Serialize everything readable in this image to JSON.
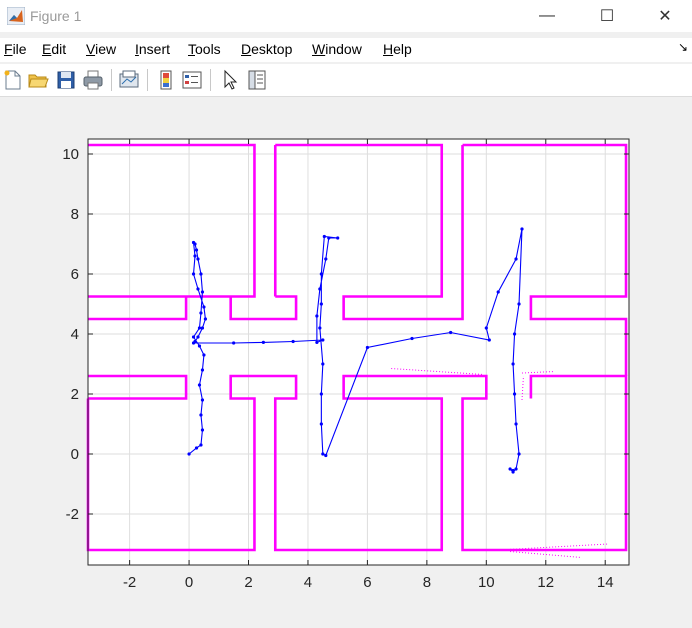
{
  "window": {
    "title": "Figure 1",
    "minimize": "—",
    "maximize": "☐",
    "close": "✕"
  },
  "menu": [
    {
      "key": "F",
      "rest": "ile"
    },
    {
      "key": "E",
      "rest": "dit"
    },
    {
      "key": "V",
      "rest": "iew"
    },
    {
      "key": "I",
      "rest": "nsert"
    },
    {
      "key": "T",
      "rest": "ools"
    },
    {
      "key": "D",
      "rest": "esktop"
    },
    {
      "key": "W",
      "rest": "indow"
    },
    {
      "key": "H",
      "rest": "elp"
    }
  ],
  "toolbar_icons": [
    "new-figure-icon",
    "open-file-icon",
    "save-icon",
    "print-icon",
    "link-plot-icon",
    "insert-colorbar-icon",
    "insert-legend-icon",
    "edit-plot-icon",
    "property-inspector-icon"
  ],
  "colors": {
    "map": "#ff00ff",
    "path": "#0000ff",
    "grid": "#dedede"
  },
  "chart_data": {
    "type": "line",
    "title": "",
    "xlabel": "",
    "ylabel": "",
    "xlim": [
      -3.4,
      14.8
    ],
    "ylim": [
      -3.7,
      10.5
    ],
    "xticks": [
      -2,
      0,
      2,
      4,
      6,
      8,
      10,
      12,
      14
    ],
    "yticks": [
      -2,
      0,
      2,
      4,
      6,
      8,
      10
    ],
    "grid": true,
    "series": [
      {
        "role": "occupancy-map-walls",
        "color": "#ff00ff",
        "polylines": [
          [
            [
              -3.4,
              10.3
            ],
            [
              2.2,
              10.3
            ],
            [
              2.2,
              5.25
            ],
            [
              -3.4,
              5.25
            ]
          ],
          [
            [
              -3.4,
              4.5
            ],
            [
              -0.1,
              4.5
            ],
            [
              -0.1,
              5.25
            ]
          ],
          [
            [
              -3.4,
              2.6
            ],
            [
              -0.1,
              2.6
            ],
            [
              -0.1,
              1.85
            ],
            [
              -3.4,
              1.85
            ]
          ],
          [
            [
              -3.4,
              1.85
            ],
            [
              -3.4,
              -3.2
            ],
            [
              2.2,
              -3.2
            ],
            [
              2.2,
              1.85
            ],
            [
              1.4,
              1.85
            ],
            [
              1.4,
              2.6
            ],
            [
              3.6,
              2.6
            ],
            [
              3.6,
              1.85
            ],
            [
              2.9,
              1.85
            ],
            [
              2.9,
              -3.2
            ],
            [
              8.5,
              -3.2
            ],
            [
              8.5,
              1.85
            ],
            [
              5.2,
              1.85
            ],
            [
              5.2,
              2.6
            ],
            [
              10.0,
              2.6
            ],
            [
              10.0,
              1.85
            ],
            [
              9.2,
              1.85
            ],
            [
              9.2,
              -3.2
            ],
            [
              14.7,
              -3.2
            ],
            [
              14.7,
              2.6
            ],
            [
              11.5,
              2.6
            ],
            [
              11.5,
              1.85
            ]
          ],
          [
            [
              2.9,
              10.3
            ],
            [
              8.5,
              10.3
            ],
            [
              8.5,
              5.25
            ],
            [
              5.2,
              5.25
            ],
            [
              5.2,
              4.5
            ],
            [
              9.2,
              4.5
            ],
            [
              9.2,
              10.3
            ]
          ],
          [
            [
              1.4,
              5.25
            ],
            [
              1.4,
              4.5
            ],
            [
              3.6,
              4.5
            ],
            [
              3.6,
              5.25
            ],
            [
              2.9,
              5.25
            ]
          ],
          [
            [
              9.2,
              10.3
            ],
            [
              14.7,
              10.3
            ],
            [
              14.7,
              5.25
            ],
            [
              11.5,
              5.25
            ],
            [
              11.5,
              4.5
            ],
            [
              14.7,
              4.5
            ],
            [
              14.7,
              2.6
            ]
          ],
          [
            [
              2.9,
              5.25
            ],
            [
              2.9,
              10.3
            ]
          ]
        ],
        "scatter_streaks": [
          [
            [
              6.8,
              2.85
            ],
            [
              9.9,
              2.65
            ]
          ],
          [
            [
              10.4,
              -3.2
            ],
            [
              14.1,
              -3.0
            ]
          ],
          [
            [
              10.8,
              -3.25
            ],
            [
              13.2,
              -3.45
            ]
          ],
          [
            [
              11.2,
              2.7
            ],
            [
              12.3,
              2.75
            ]
          ],
          [
            [
              11.2,
              1.8
            ],
            [
              11.25,
              2.6
            ]
          ]
        ]
      },
      {
        "role": "trajectory",
        "color": "#0000ff",
        "x": [
          0.0,
          0.25,
          0.4,
          0.45,
          0.4,
          0.45,
          0.35,
          0.45,
          0.5,
          0.35,
          0.15,
          0.35,
          0.4,
          0.45,
          0.4,
          0.3,
          0.25,
          0.2,
          0.15,
          0.2,
          0.15,
          0.3,
          0.5,
          0.55,
          0.45,
          0.3,
          0.2,
          0.15,
          1.5,
          2.5,
          3.5,
          4.5,
          4.3,
          4.3,
          4.4,
          4.6,
          4.7,
          5.0,
          4.55,
          4.45,
          4.45,
          4.4,
          4.5,
          4.45,
          4.45,
          4.5,
          4.6,
          6.0,
          7.5,
          8.8,
          10.1,
          10.0,
          10.4,
          11.0,
          11.2,
          11.1,
          10.95,
          10.9,
          10.95,
          11.0,
          11.1,
          11.0,
          10.9,
          10.8,
          10.9
        ],
        "y": [
          0.0,
          0.2,
          0.3,
          0.8,
          1.3,
          1.8,
          2.3,
          2.8,
          3.3,
          3.6,
          3.9,
          4.2,
          4.7,
          5.4,
          6.0,
          6.5,
          6.8,
          7.0,
          7.05,
          6.6,
          6.0,
          5.5,
          4.9,
          4.5,
          4.2,
          3.9,
          3.75,
          3.7,
          3.7,
          3.72,
          3.75,
          3.8,
          3.72,
          4.6,
          5.5,
          6.5,
          7.2,
          7.2,
          7.25,
          6.0,
          5.0,
          4.2,
          3.0,
          2.0,
          1.0,
          0.0,
          -0.05,
          3.55,
          3.85,
          4.05,
          3.8,
          4.2,
          5.4,
          6.5,
          7.5,
          5.0,
          4.0,
          3.0,
          2.0,
          1.0,
          0.0,
          -0.5,
          -0.6,
          -0.5,
          -0.55
        ]
      }
    ]
  }
}
